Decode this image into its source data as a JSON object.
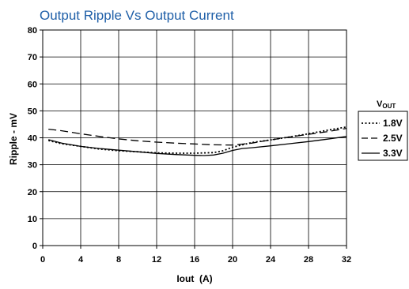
{
  "chart_data": {
    "type": "line",
    "title": "Output Ripple Vs Output Current",
    "xlabel": "Iout  (A)",
    "ylabel": "Ripple - mV",
    "xlim": [
      0,
      32
    ],
    "ylim": [
      0,
      80
    ],
    "xticks": [
      "0",
      "4",
      "8",
      "12",
      "16",
      "20",
      "24",
      "28",
      "32"
    ],
    "yticks": [
      "0",
      "10",
      "20",
      "30",
      "40",
      "50",
      "60",
      "70",
      "80"
    ],
    "grid": true,
    "legend": {
      "title": "VOUT",
      "title_main": "V",
      "title_sub": "OUT",
      "placement": "right"
    },
    "series": [
      {
        "name": "1.8V",
        "style": "dotted",
        "x": [
          0.6,
          2,
          4,
          6,
          8,
          10,
          12,
          14,
          16,
          18,
          19,
          20,
          22,
          24,
          26,
          28,
          30,
          32
        ],
        "y": [
          39.0,
          37.8,
          36.8,
          35.8,
          35.2,
          34.8,
          34.4,
          34.3,
          34.3,
          34.5,
          35.2,
          36.5,
          38.2,
          39.2,
          40.3,
          41.5,
          42.8,
          44.0
        ]
      },
      {
        "name": "2.5V",
        "style": "dashed",
        "x": [
          0.6,
          2,
          4,
          6,
          8,
          10,
          12,
          14,
          16,
          18,
          20,
          22,
          24,
          26,
          28,
          30,
          32
        ],
        "y": [
          43.2,
          42.6,
          41.5,
          40.5,
          39.6,
          38.9,
          38.4,
          38.0,
          37.7,
          37.4,
          37.3,
          38.0,
          39.2,
          40.3,
          41.3,
          42.3,
          43.5
        ]
      },
      {
        "name": "3.3V",
        "style": "solid",
        "x": [
          0.6,
          2,
          4,
          6,
          8,
          10,
          12,
          14,
          16,
          17,
          18,
          19,
          20,
          21,
          22,
          24,
          26,
          28,
          30,
          32
        ],
        "y": [
          39.3,
          38.0,
          36.8,
          36.0,
          35.4,
          34.8,
          34.2,
          33.8,
          33.5,
          33.4,
          33.6,
          34.3,
          35.3,
          36.0,
          36.3,
          37.0,
          37.8,
          38.6,
          39.5,
          40.5
        ]
      }
    ]
  }
}
